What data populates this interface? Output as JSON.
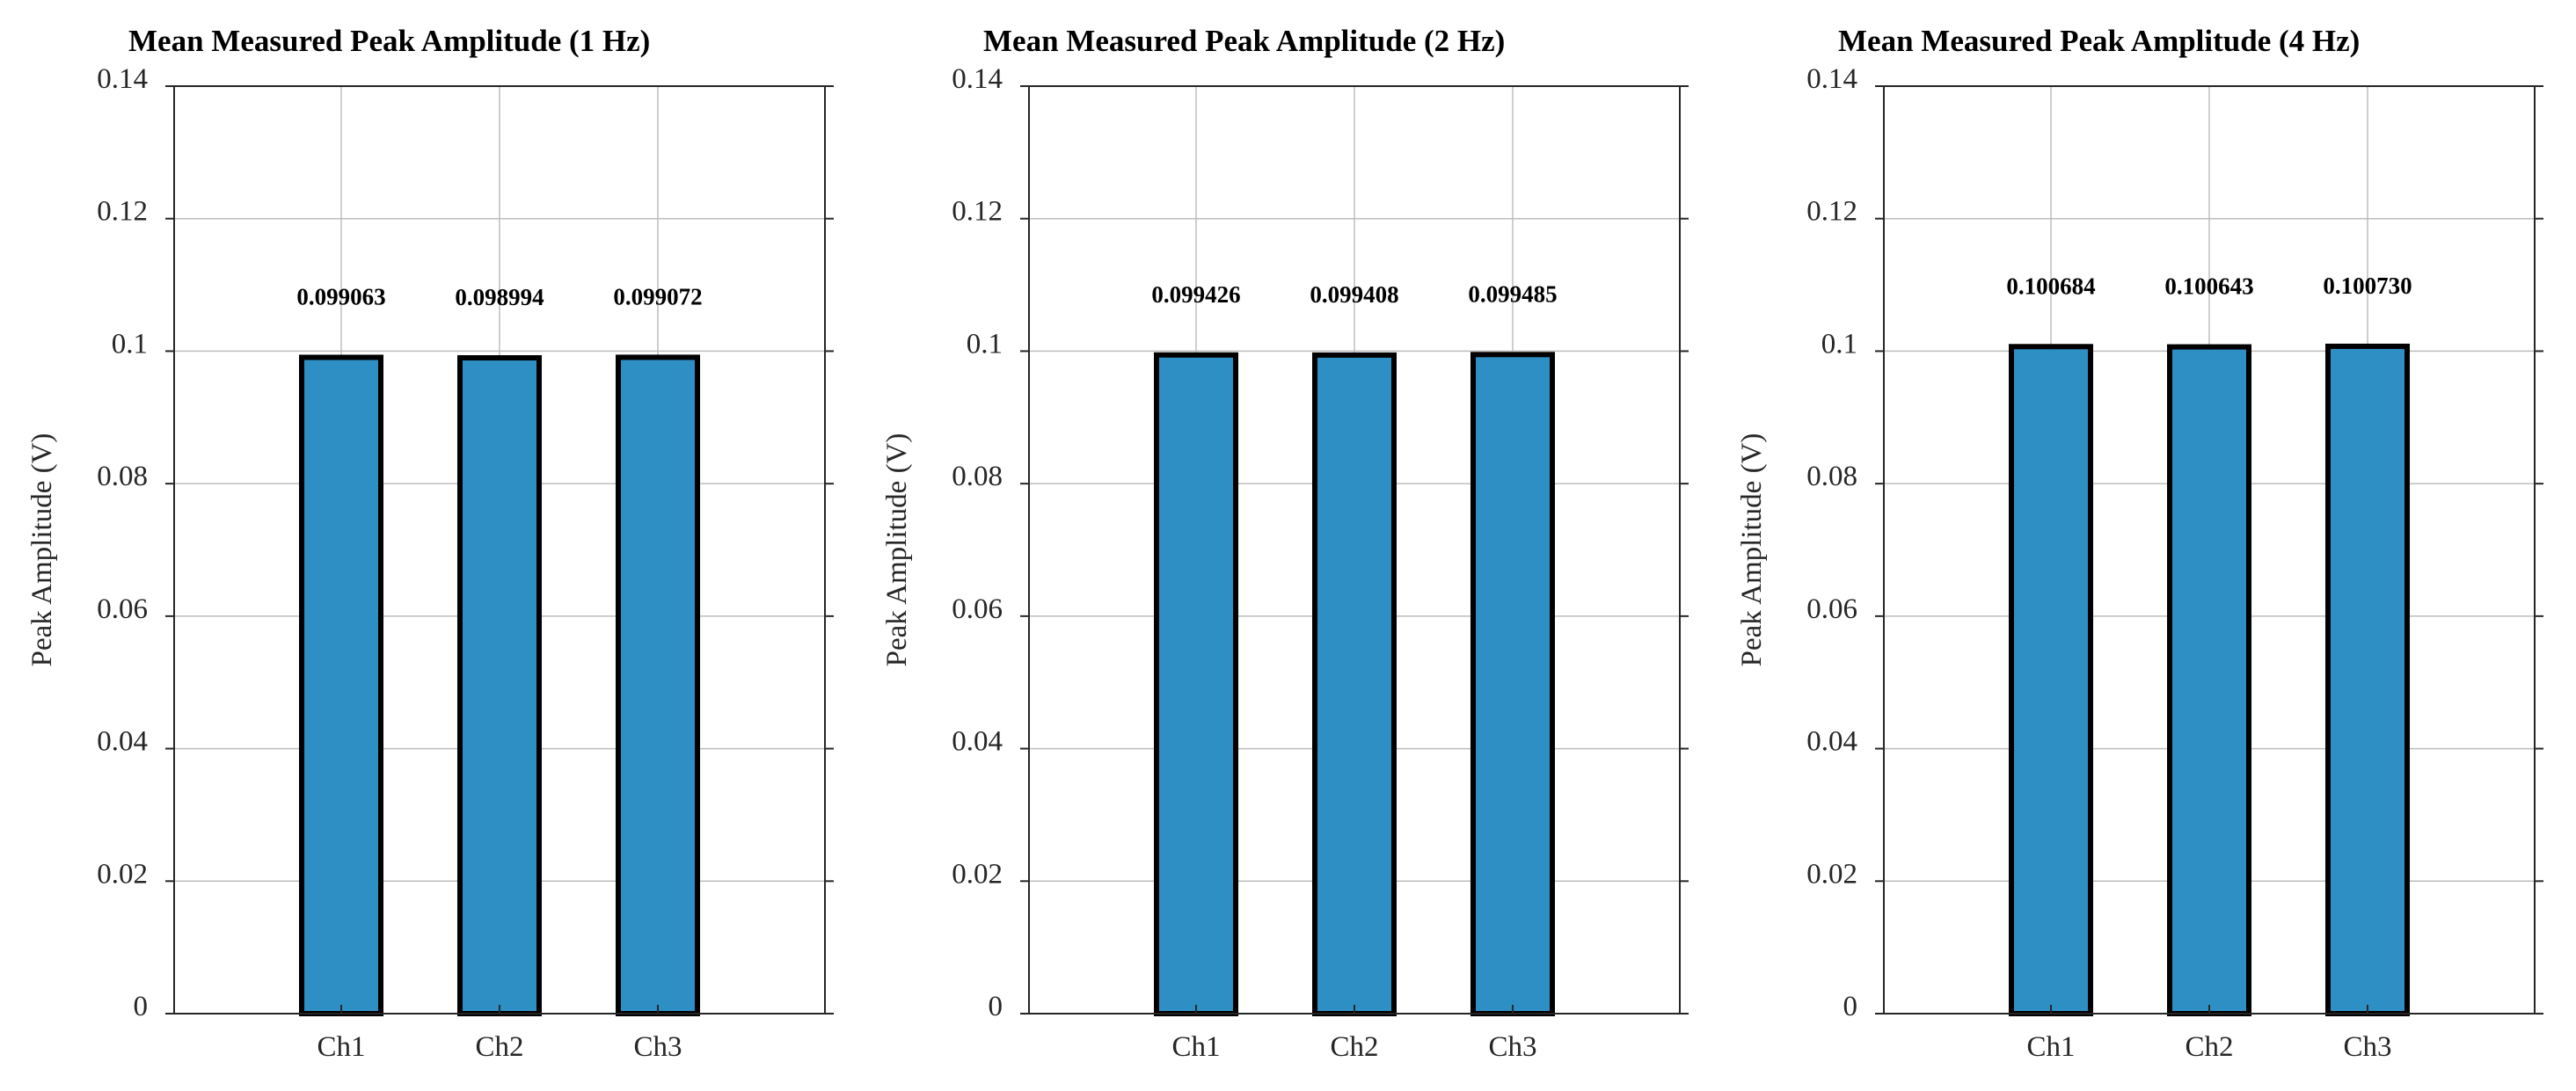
{
  "colors": {
    "bar_fill": "#2E8FC4",
    "bar_edge": "#000000",
    "grid": "#BDBDBD",
    "axis": "#262626"
  },
  "chart_data": [
    {
      "type": "bar",
      "title": "Mean Measured Peak Amplitude (1 Hz)",
      "xlabel": "",
      "ylabel": "Peak Amplitude (V)",
      "categories": [
        "Ch1",
        "Ch2",
        "Ch3"
      ],
      "values": [
        0.099063,
        0.098994,
        0.099072
      ],
      "data_labels": [
        "0.099063",
        "0.098994",
        "0.099072"
      ],
      "ylim": [
        0,
        0.14
      ],
      "yticks": [
        0,
        0.02,
        0.04,
        0.06,
        0.08,
        0.1,
        0.12,
        0.14
      ],
      "ytick_labels": [
        "0",
        "0.02",
        "0.04",
        "0.06",
        "0.08",
        "0.1",
        "0.12",
        "0.14"
      ],
      "grid": true,
      "legend": "none"
    },
    {
      "type": "bar",
      "title": "Mean Measured Peak Amplitude (2 Hz)",
      "xlabel": "",
      "ylabel": "Peak Amplitude (V)",
      "categories": [
        "Ch1",
        "Ch2",
        "Ch3"
      ],
      "values": [
        0.099426,
        0.099408,
        0.099485
      ],
      "data_labels": [
        "0.099426",
        "0.099408",
        "0.099485"
      ],
      "ylim": [
        0,
        0.14
      ],
      "yticks": [
        0,
        0.02,
        0.04,
        0.06,
        0.08,
        0.1,
        0.12,
        0.14
      ],
      "ytick_labels": [
        "0",
        "0.02",
        "0.04",
        "0.06",
        "0.08",
        "0.1",
        "0.12",
        "0.14"
      ],
      "grid": true,
      "legend": "none"
    },
    {
      "type": "bar",
      "title": "Mean Measured Peak Amplitude (4 Hz)",
      "xlabel": "",
      "ylabel": "Peak Amplitude (V)",
      "categories": [
        "Ch1",
        "Ch2",
        "Ch3"
      ],
      "values": [
        0.100684,
        0.100643,
        0.10073
      ],
      "data_labels": [
        "0.100684",
        "0.100643",
        "0.100730"
      ],
      "ylim": [
        0,
        0.14
      ],
      "yticks": [
        0,
        0.02,
        0.04,
        0.06,
        0.08,
        0.1,
        0.12,
        0.14
      ],
      "ytick_labels": [
        "0",
        "0.02",
        "0.04",
        "0.06",
        "0.08",
        "0.1",
        "0.12",
        "0.14"
      ],
      "grid": true,
      "legend": "none"
    }
  ]
}
